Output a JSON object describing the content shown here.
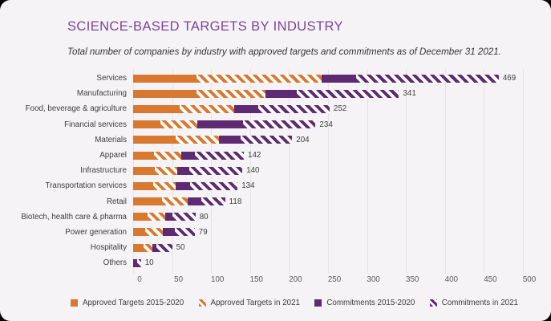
{
  "header": {
    "title": "SCIENCE-BASED TARGETS BY INDUSTRY",
    "subtitle": "Total number of companies by industry with approved targets and commitments as of December 31 2021."
  },
  "chart_data": {
    "type": "bar",
    "orientation": "horizontal",
    "stacked": true,
    "title": "SCIENCE-BASED TARGETS BY INDUSTRY",
    "subtitle": "Total number of companies by industry with approved targets and commitments as of December 31 2021.",
    "categories": [
      "Services",
      "Manufacturing",
      "Food, beverage & agriculture",
      "Financial services",
      "Materials",
      "Apparel",
      "Infrastructure",
      "Transportation services",
      "Retail",
      "Biotech, health care & pharma",
      "Power generation",
      "Hospitality",
      "Others"
    ],
    "series": [
      {
        "name": "Approved Targets 2015-2020",
        "style": "solid-orange",
        "values": [
          81,
          81,
          60,
          35,
          55,
          27,
          28,
          26,
          37,
          19,
          15,
          13,
          0
        ]
      },
      {
        "name": "Approved Targets in 2021",
        "style": "hatched-orange",
        "values": [
          161,
          89,
          70,
          47,
          55,
          35,
          29,
          29,
          33,
          22,
          23,
          12,
          0
        ]
      },
      {
        "name": "Commitments 2015-2020",
        "style": "solid-purple",
        "values": [
          44,
          40,
          31,
          59,
          28,
          17,
          15,
          18,
          17,
          9,
          15,
          5,
          5
        ]
      },
      {
        "name": "Commitments in 2021",
        "style": "hatched-purple",
        "values": [
          183,
          131,
          91,
          93,
          66,
          63,
          68,
          61,
          31,
          30,
          26,
          20,
          5
        ]
      }
    ],
    "totals": [
      469,
      341,
      252,
      234,
      204,
      142,
      140,
      134,
      118,
      80,
      79,
      50,
      10
    ],
    "x_ticks": [
      0,
      50,
      100,
      150,
      200,
      250,
      300,
      350,
      400,
      450,
      500
    ],
    "xlim": [
      0,
      500
    ],
    "grid": true,
    "legend_position": "bottom",
    "legend": [
      "Approved Targets 2015-2020",
      "Approved Targets in 2021",
      "Commitments 2015-2020",
      "Commitments in 2021"
    ],
    "colors": {
      "orange": "#D9782F",
      "purple": "#5E2B72",
      "grid": "#E6E3E7",
      "background": "#F5F3F6",
      "title": "#7B4497"
    }
  }
}
